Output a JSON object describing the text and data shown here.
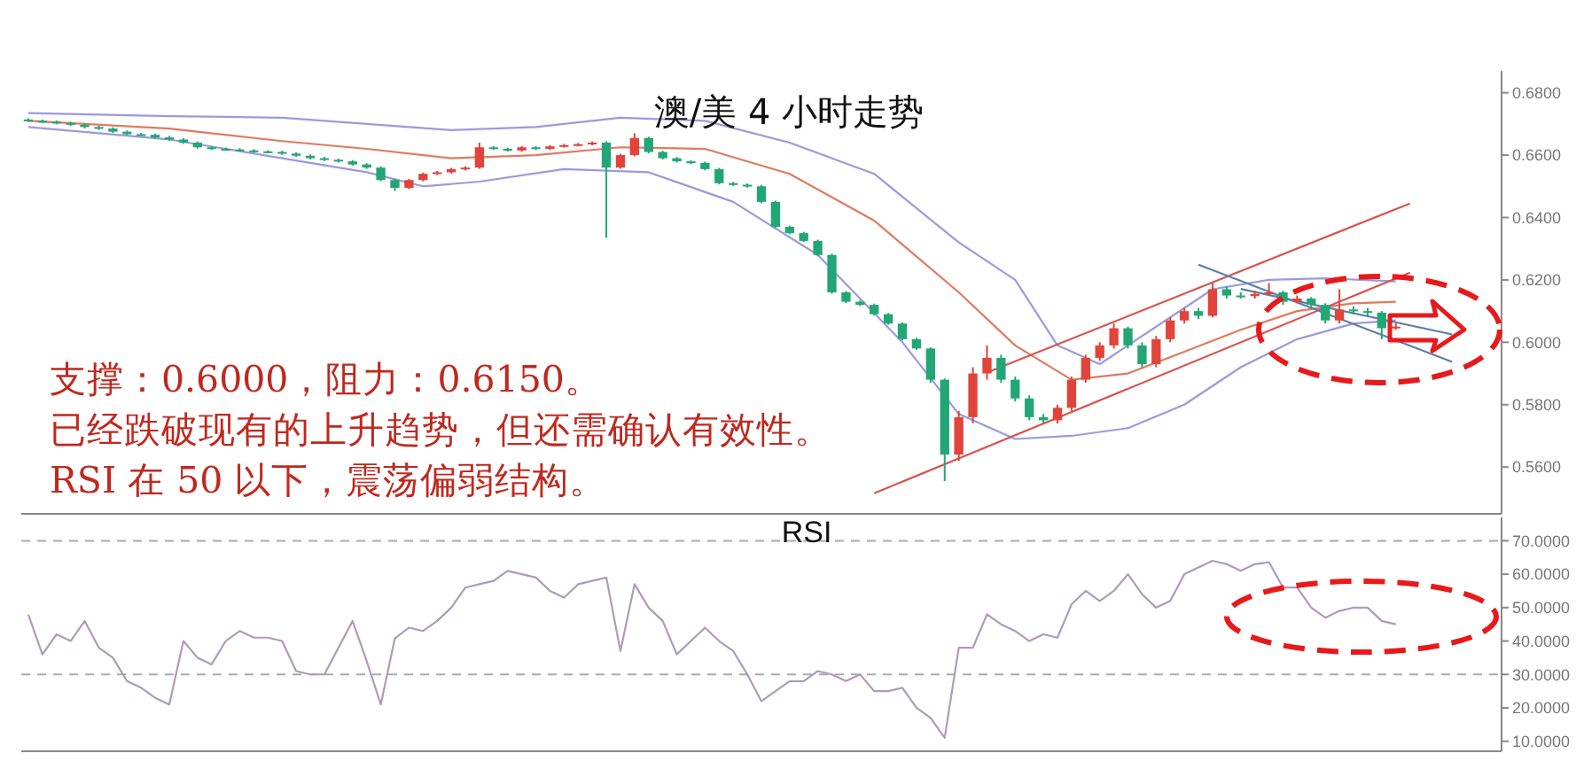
{
  "chart_data": [
    {
      "type": "candlestick",
      "title": "澳/美 4 小时走势",
      "tick_labels": "y",
      "ylim": [
        0.545,
        0.687
      ],
      "yticks": [
        {
          "value": 0.56,
          "label": "0.5600"
        },
        {
          "value": 0.58,
          "label": "0.5800"
        },
        {
          "value": 0.6,
          "label": "0.6000"
        },
        {
          "value": 0.62,
          "label": "0.6200"
        },
        {
          "value": 0.64,
          "label": "0.6400"
        },
        {
          "value": 0.66,
          "label": "0.6600"
        },
        {
          "value": 0.68,
          "label": "0.6800"
        }
      ],
      "annotations": [
        "支撑：0.6000，阻力：0.6150。",
        "已经跌破现有的上升趋势，但还需确认有效性。",
        "RSI 在 50 以下，震荡偏弱结构。"
      ],
      "categories": [
        null,
        null,
        null,
        null,
        null,
        null,
        null,
        null,
        null,
        null,
        null,
        null,
        null,
        null,
        null,
        null,
        null,
        null,
        null,
        null,
        null,
        null,
        null,
        null,
        null,
        null,
        null,
        null,
        null,
        null,
        null,
        null,
        null,
        null,
        null,
        null,
        null,
        null,
        null,
        null,
        null,
        null,
        null,
        null,
        null,
        null,
        null,
        null,
        null,
        null,
        null,
        null,
        null,
        null,
        null,
        null,
        null,
        null,
        null,
        null,
        null,
        null,
        null,
        null,
        null,
        null,
        null,
        null,
        null,
        null,
        null,
        null,
        null,
        null,
        null,
        null,
        null,
        null,
        null,
        null,
        null,
        null,
        null,
        null,
        null,
        null,
        null,
        null,
        null,
        null,
        null,
        null,
        null,
        null,
        null,
        null,
        null,
        null,
        null,
        null,
        null,
        null,
        null,
        null,
        null
      ],
      "ohlc": [
        [
          0.6714,
          0.6718,
          0.6706,
          0.671
        ],
        [
          0.671,
          0.6714,
          0.6703,
          0.6707
        ],
        [
          0.6707,
          0.6711,
          0.6699,
          0.6703
        ],
        [
          0.6703,
          0.6707,
          0.6693,
          0.6697
        ],
        [
          0.6697,
          0.6701,
          0.6686,
          0.669
        ],
        [
          0.669,
          0.6694,
          0.6681,
          0.6685
        ],
        [
          0.6685,
          0.6689,
          0.6671,
          0.6675
        ],
        [
          0.6675,
          0.6679,
          0.6663,
          0.6667
        ],
        [
          0.6667,
          0.6671,
          0.6661,
          0.6665
        ],
        [
          0.6665,
          0.6669,
          0.6653,
          0.6657
        ],
        [
          0.6657,
          0.6661,
          0.6646,
          0.665
        ],
        [
          0.665,
          0.6654,
          0.6636,
          0.664
        ],
        [
          0.664,
          0.6644,
          0.6621,
          0.6625
        ],
        [
          0.6625,
          0.6629,
          0.6616,
          0.662
        ],
        [
          0.662,
          0.6624,
          0.6614,
          0.6618
        ],
        [
          0.6618,
          0.6622,
          0.6611,
          0.6615
        ],
        [
          0.6615,
          0.6619,
          0.6608,
          0.6612
        ],
        [
          0.6612,
          0.6616,
          0.6606,
          0.661
        ],
        [
          0.661,
          0.6614,
          0.6601,
          0.6605
        ],
        [
          0.6605,
          0.6609,
          0.6594,
          0.6598
        ],
        [
          0.6598,
          0.6602,
          0.6586,
          0.659
        ],
        [
          0.659,
          0.6594,
          0.6581,
          0.6585
        ],
        [
          0.6585,
          0.6589,
          0.6576,
          0.658
        ],
        [
          0.658,
          0.6584,
          0.6566,
          0.657
        ],
        [
          0.657,
          0.6574,
          0.6556,
          0.656
        ],
        [
          0.656,
          0.6564,
          0.6516,
          0.652
        ],
        [
          0.652,
          0.6524,
          0.6485,
          0.6495
        ],
        [
          0.6495,
          0.6524,
          0.6491,
          0.652
        ],
        [
          0.652,
          0.6544,
          0.6516,
          0.654
        ],
        [
          0.654,
          0.6549,
          0.6536,
          0.6545
        ],
        [
          0.6545,
          0.6559,
          0.6541,
          0.6555
        ],
        [
          0.6555,
          0.6564,
          0.6551,
          0.656
        ],
        [
          0.656,
          0.664,
          0.6556,
          0.6625
        ],
        [
          0.6625,
          0.6629,
          0.6616,
          0.662
        ],
        [
          0.662,
          0.6624,
          0.6611,
          0.6615
        ],
        [
          0.6615,
          0.6629,
          0.6611,
          0.6625
        ],
        [
          0.6625,
          0.6629,
          0.6616,
          0.662
        ],
        [
          0.662,
          0.6632,
          0.6616,
          0.6628
        ],
        [
          0.6628,
          0.6636,
          0.6624,
          0.6632
        ],
        [
          0.6632,
          0.6639,
          0.6628,
          0.6635
        ],
        [
          0.6635,
          0.6644,
          0.6631,
          0.664
        ],
        [
          0.664,
          0.6644,
          0.6335,
          0.656
        ],
        [
          0.656,
          0.6604,
          0.6556,
          0.66
        ],
        [
          0.66,
          0.667,
          0.6596,
          0.6655
        ],
        [
          0.6655,
          0.6659,
          0.6606,
          0.661
        ],
        [
          0.661,
          0.6614,
          0.6586,
          0.659
        ],
        [
          0.659,
          0.6594,
          0.6576,
          0.658
        ],
        [
          0.658,
          0.6584,
          0.6571,
          0.6575
        ],
        [
          0.6575,
          0.6579,
          0.6551,
          0.6555
        ],
        [
          0.6555,
          0.6559,
          0.6506,
          0.651
        ],
        [
          0.651,
          0.6514,
          0.6501,
          0.6505
        ],
        [
          0.6505,
          0.6509,
          0.6496,
          0.65
        ],
        [
          0.65,
          0.6504,
          0.6446,
          0.645
        ],
        [
          0.645,
          0.6454,
          0.6366,
          0.637
        ],
        [
          0.637,
          0.6374,
          0.6346,
          0.635
        ],
        [
          0.635,
          0.6354,
          0.6321,
          0.6325
        ],
        [
          0.6325,
          0.6329,
          0.6276,
          0.628
        ],
        [
          0.628,
          0.6284,
          0.6156,
          0.616
        ],
        [
          0.616,
          0.6164,
          0.6126,
          0.613
        ],
        [
          0.613,
          0.6134,
          0.6116,
          0.612
        ],
        [
          0.612,
          0.6124,
          0.6086,
          0.609
        ],
        [
          0.609,
          0.6094,
          0.6056,
          0.606
        ],
        [
          0.606,
          0.6064,
          0.6006,
          0.601
        ],
        [
          0.601,
          0.6014,
          0.5976,
          0.598
        ],
        [
          0.598,
          0.5984,
          0.587,
          0.588
        ],
        [
          0.588,
          0.5884,
          0.5555,
          0.564
        ],
        [
          0.564,
          0.578,
          0.562,
          0.576
        ],
        [
          0.576,
          0.592,
          0.574,
          0.59
        ],
        [
          0.59,
          0.599,
          0.588,
          0.595
        ],
        [
          0.595,
          0.596,
          0.587,
          0.588
        ],
        [
          0.588,
          0.589,
          0.581,
          0.582
        ],
        [
          0.582,
          0.583,
          0.575,
          0.576
        ],
        [
          0.576,
          0.577,
          0.574,
          0.575
        ],
        [
          0.575,
          0.58,
          0.574,
          0.579
        ],
        [
          0.579,
          0.589,
          0.578,
          0.588
        ],
        [
          0.588,
          0.596,
          0.587,
          0.595
        ],
        [
          0.595,
          0.6,
          0.594,
          0.599
        ],
        [
          0.599,
          0.606,
          0.598,
          0.6045
        ],
        [
          0.6045,
          0.605,
          0.598,
          0.599
        ],
        [
          0.599,
          0.6,
          0.592,
          0.593
        ],
        [
          0.593,
          0.602,
          0.592,
          0.601
        ],
        [
          0.601,
          0.608,
          0.6,
          0.607
        ],
        [
          0.607,
          0.611,
          0.606,
          0.61
        ],
        [
          0.61,
          0.611,
          0.6075,
          0.6085
        ],
        [
          0.6085,
          0.619,
          0.608,
          0.617
        ],
        [
          0.617,
          0.618,
          0.614,
          0.615
        ],
        [
          0.615,
          0.616,
          0.614,
          0.6148
        ],
        [
          0.6148,
          0.6165,
          0.614,
          0.6155
        ],
        [
          0.6155,
          0.619,
          0.615,
          0.616
        ],
        [
          0.616,
          0.6165,
          0.612,
          0.613
        ],
        [
          0.613,
          0.615,
          0.6125,
          0.614
        ],
        [
          0.614,
          0.6145,
          0.611,
          0.612
        ],
        [
          0.612,
          0.6125,
          0.606,
          0.607
        ],
        [
          0.607,
          0.617,
          0.606,
          0.6105
        ],
        [
          0.6105,
          0.6115,
          0.609,
          0.61
        ],
        [
          0.61,
          0.611,
          0.6085,
          0.6095
        ],
        [
          0.6095,
          0.61,
          0.601,
          0.6045
        ],
        [
          0.6045,
          0.606,
          0.604,
          0.605
        ],
        null,
        null,
        null,
        null,
        null,
        null,
        null
      ],
      "series": [
        {
          "type": "line",
          "color": "#9a9ade",
          "values": [
            0.6735,
            null,
            null,
            null,
            null,
            null,
            null,
            null,
            null,
            null,
            0.6725,
            null,
            null,
            null,
            null,
            null,
            null,
            null,
            0.672,
            null,
            null,
            null,
            null,
            null,
            0.67,
            null,
            null,
            null,
            null,
            null,
            0.668,
            null,
            null,
            null,
            null,
            null,
            0.669,
            null,
            null,
            null,
            null,
            null,
            0.672,
            null,
            null,
            null,
            null,
            null,
            0.671,
            null,
            null,
            null,
            null,
            null,
            0.664,
            null,
            null,
            null,
            null,
            null,
            0.654,
            null,
            null,
            null,
            null,
            null,
            0.632,
            null,
            null,
            null,
            0.62,
            null,
            null,
            0.599,
            null,
            null,
            0.593,
            null,
            null,
            null,
            0.605,
            null,
            null,
            null,
            0.617,
            null,
            null,
            null,
            0.62,
            null,
            null,
            null,
            0.6205,
            null,
            null,
            null,
            null,
            0.6195,
            null,
            null,
            null,
            null,
            null,
            null,
            null
          ]
        },
        {
          "type": "line",
          "color": "#e07a5f",
          "values": [
            0.671,
            null,
            null,
            null,
            null,
            null,
            null,
            null,
            null,
            null,
            0.6685,
            null,
            null,
            null,
            null,
            null,
            null,
            null,
            0.6645,
            null,
            null,
            null,
            null,
            null,
            0.662,
            null,
            null,
            null,
            null,
            null,
            0.659,
            null,
            null,
            null,
            null,
            null,
            0.66,
            null,
            null,
            null,
            null,
            null,
            0.6625,
            null,
            null,
            null,
            null,
            null,
            0.662,
            null,
            null,
            null,
            null,
            null,
            0.654,
            null,
            null,
            null,
            null,
            null,
            0.639,
            null,
            null,
            null,
            null,
            null,
            0.616,
            null,
            null,
            null,
            0.599,
            null,
            null,
            null,
            0.588,
            null,
            null,
            null,
            0.59,
            null,
            null,
            null,
            0.597,
            null,
            null,
            null,
            0.604,
            null,
            null,
            null,
            0.61,
            null,
            null,
            null,
            0.6125,
            null,
            null,
            0.613,
            null,
            null,
            null,
            null,
            null,
            null,
            null
          ]
        },
        {
          "type": "line",
          "color": "#9a9ade",
          "values": [
            0.669,
            null,
            null,
            null,
            null,
            null,
            null,
            null,
            null,
            null,
            0.665,
            null,
            null,
            null,
            null,
            null,
            null,
            null,
            0.659,
            null,
            null,
            null,
            null,
            null,
            0.6545,
            null,
            null,
            null,
            0.65,
            null,
            null,
            null,
            0.6515,
            null,
            null,
            null,
            null,
            null,
            0.6555,
            null,
            null,
            null,
            null,
            null,
            0.6545,
            null,
            null,
            null,
            null,
            null,
            0.645,
            null,
            null,
            null,
            null,
            null,
            0.628,
            null,
            null,
            null,
            null,
            null,
            0.6,
            null,
            null,
            null,
            0.577,
            null,
            null,
            null,
            0.569,
            null,
            null,
            null,
            0.57,
            null,
            null,
            null,
            0.5725,
            null,
            null,
            null,
            0.58,
            null,
            null,
            null,
            0.592,
            null,
            null,
            null,
            0.601,
            null,
            null,
            null,
            0.606,
            null,
            null,
            0.607,
            null,
            null,
            null,
            null,
            null,
            null,
            null
          ]
        },
        {
          "type": "line",
          "color": "#d9534f",
          "values": [
            null,
            null,
            null,
            null,
            null,
            null,
            null,
            null,
            null,
            null,
            null,
            null,
            null,
            null,
            null,
            null,
            null,
            null,
            null,
            null,
            null,
            null,
            null,
            null,
            null,
            null,
            null,
            null,
            null,
            null,
            null,
            null,
            null,
            null,
            null,
            null,
            null,
            null,
            null,
            null,
            null,
            null,
            null,
            null,
            null,
            null,
            null,
            null,
            null,
            null,
            null,
            null,
            null,
            null,
            null,
            null,
            null,
            null,
            null,
            null,
            0.5516,
            null,
            null,
            null,
            null,
            null,
            null,
            null,
            null,
            null,
            null,
            null,
            null,
            null,
            null,
            null,
            null,
            null,
            null,
            null,
            null,
            null,
            null,
            null,
            null,
            null,
            null,
            null,
            null,
            null,
            null,
            null,
            null,
            null,
            null,
            null,
            null,
            null,
            0.6223,
            null,
            null,
            null,
            null,
            null,
            null
          ]
        },
        {
          "type": "line",
          "color": "#d9534f",
          "values": [
            null,
            null,
            null,
            null,
            null,
            null,
            null,
            null,
            null,
            null,
            null,
            null,
            null,
            null,
            null,
            null,
            null,
            null,
            null,
            null,
            null,
            null,
            null,
            null,
            null,
            null,
            null,
            null,
            null,
            null,
            null,
            null,
            null,
            null,
            null,
            null,
            null,
            null,
            null,
            null,
            null,
            null,
            null,
            null,
            null,
            null,
            null,
            null,
            null,
            null,
            null,
            null,
            null,
            null,
            null,
            null,
            null,
            null,
            null,
            null,
            null,
            null,
            null,
            null,
            null,
            null,
            null,
            null,
            0.5903,
            null,
            null,
            null,
            null,
            null,
            null,
            null,
            null,
            null,
            null,
            null,
            null,
            null,
            null,
            null,
            null,
            null,
            null,
            null,
            null,
            null,
            null,
            null,
            null,
            null,
            null,
            null,
            null,
            null,
            0.6445,
            null,
            null,
            null,
            null,
            null,
            null
          ]
        },
        {
          "type": "line",
          "color": "#5b7fa8",
          "values": [
            null,
            null,
            null,
            null,
            null,
            null,
            null,
            null,
            null,
            null,
            null,
            null,
            null,
            null,
            null,
            null,
            null,
            null,
            null,
            null,
            null,
            null,
            null,
            null,
            null,
            null,
            null,
            null,
            null,
            null,
            null,
            null,
            null,
            null,
            null,
            null,
            null,
            null,
            null,
            null,
            null,
            null,
            null,
            null,
            null,
            null,
            null,
            null,
            null,
            null,
            null,
            null,
            null,
            null,
            null,
            null,
            null,
            null,
            null,
            null,
            null,
            null,
            null,
            null,
            null,
            null,
            null,
            null,
            null,
            null,
            null,
            null,
            null,
            null,
            null,
            null,
            null,
            null,
            null,
            null,
            null,
            null,
            null,
            0.6249,
            null,
            null,
            null,
            null,
            null,
            null,
            null,
            null,
            null,
            null,
            null,
            null,
            null,
            null,
            null,
            null,
            null,
            0.5937,
            null,
            null,
            null
          ]
        },
        {
          "type": "line",
          "color": "#5b7fa8",
          "values": [
            null,
            null,
            null,
            null,
            null,
            null,
            null,
            null,
            null,
            null,
            null,
            null,
            null,
            null,
            null,
            null,
            null,
            null,
            null,
            null,
            null,
            null,
            null,
            null,
            null,
            null,
            null,
            null,
            null,
            null,
            null,
            null,
            null,
            null,
            null,
            null,
            null,
            null,
            null,
            null,
            null,
            null,
            null,
            null,
            null,
            null,
            null,
            null,
            null,
            null,
            null,
            null,
            null,
            null,
            null,
            null,
            null,
            null,
            null,
            null,
            null,
            null,
            null,
            null,
            null,
            null,
            null,
            null,
            null,
            null,
            null,
            null,
            null,
            null,
            null,
            null,
            null,
            null,
            null,
            null,
            null,
            null,
            null,
            null,
            null,
            null,
            0.6171,
            null,
            null,
            null,
            null,
            null,
            null,
            null,
            null,
            null,
            null,
            null,
            null,
            null,
            null,
            0.6025,
            null,
            null,
            null
          ]
        }
      ]
    },
    {
      "type": "line",
      "title": "RSI",
      "tick_labels": "y",
      "ylim": [
        7,
        77
      ],
      "yticks": [
        {
          "value": 10,
          "label": "10.0000"
        },
        {
          "value": 20,
          "label": "20.0000"
        },
        {
          "value": 30,
          "label": "30.0000"
        },
        {
          "value": 40,
          "label": "40.0000"
        },
        {
          "value": 50,
          "label": "50.0000"
        },
        {
          "value": 60,
          "label": "60.0000"
        },
        {
          "value": 70,
          "label": "70.0000"
        }
      ],
      "ref_lines": [
        {
          "axis": "y",
          "value": 70,
          "line_style": "dashed",
          "color": "#aaaaaa"
        },
        {
          "axis": "y",
          "value": 30,
          "line_style": "dashed",
          "color": "#aaaaaa"
        }
      ],
      "categories": [
        null,
        null,
        null,
        null,
        null,
        null,
        null,
        null,
        null,
        null,
        null,
        null,
        null,
        null,
        null,
        null,
        null,
        null,
        null,
        null,
        null,
        null,
        null,
        null,
        null,
        null,
        null,
        null,
        null,
        null,
        null,
        null,
        null,
        null,
        null,
        null,
        null,
        null,
        null,
        null,
        null,
        null,
        null,
        null,
        null,
        null,
        null,
        null,
        null,
        null,
        null,
        null,
        null,
        null,
        null,
        null,
        null,
        null,
        null,
        null,
        null,
        null,
        null,
        null,
        null,
        null,
        null,
        null,
        null,
        null,
        null,
        null,
        null,
        null,
        null,
        null,
        null,
        null,
        null,
        null,
        null,
        null,
        null,
        null,
        null,
        null,
        null,
        null,
        null,
        null,
        null,
        null,
        null,
        null,
        null,
        null,
        null,
        null,
        null,
        null,
        null,
        null,
        null,
        null,
        null
      ],
      "series": [
        {
          "color": "#b09ab8",
          "values": [
            47.9,
            36,
            42,
            40,
            46,
            38,
            35,
            28,
            26,
            23,
            21,
            40,
            35,
            33,
            40,
            43,
            41,
            41,
            40,
            31,
            30,
            30,
            38,
            46,
            34,
            21,
            40.8,
            44,
            43,
            46,
            50,
            56,
            57,
            58,
            61,
            60,
            59,
            55,
            53,
            57,
            58,
            59,
            37,
            57,
            50,
            46,
            36,
            40,
            44,
            40,
            37,
            30,
            22,
            25,
            28,
            28,
            31,
            30,
            28,
            30,
            25,
            25,
            26,
            20,
            17,
            11,
            38,
            38,
            48,
            45,
            43,
            40,
            42,
            41,
            51,
            55,
            52,
            55,
            60,
            54,
            50,
            52,
            60,
            62,
            64,
            63,
            61,
            63,
            63.6,
            56,
            56,
            50,
            47,
            49,
            50,
            50,
            46,
            45,
            null,
            null,
            null,
            null,
            null,
            null,
            null
          ]
        }
      ]
    }
  ]
}
